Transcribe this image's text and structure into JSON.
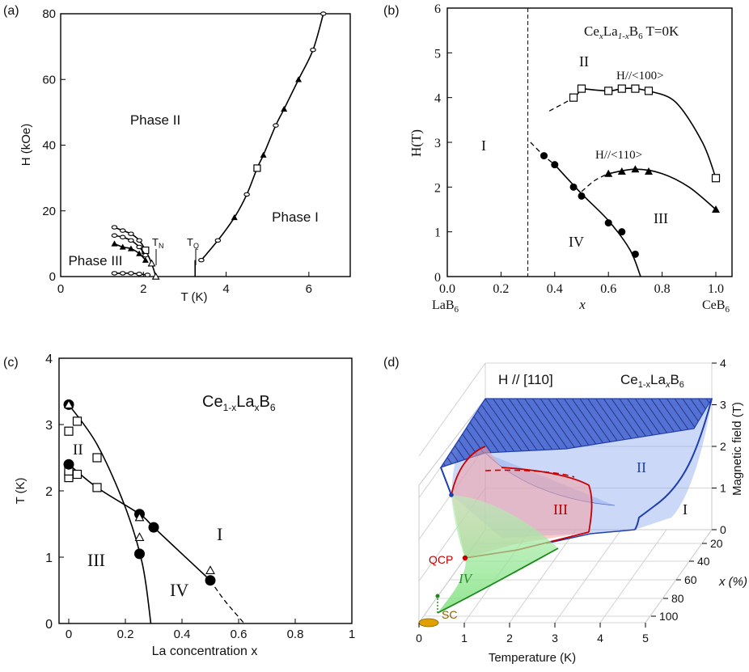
{
  "chart_data": [
    {
      "panel": "(a)",
      "type": "scatter",
      "xlabel": "T (K)",
      "ylabel": "H (kOe)",
      "xlim": [
        0,
        7
      ],
      "ylim": [
        0,
        80
      ],
      "x_ticks": [
        "0",
        "2",
        "4",
        "6"
      ],
      "y_ticks": [
        "0",
        "20",
        "40",
        "60",
        "80"
      ],
      "annotations": {
        "phase_ii": "Phase II",
        "phase_i": "Phase I",
        "phase_iii": "Phase III",
        "tn": "T",
        "tn_sub": "N",
        "tq": "T",
        "tq_sub": "Q"
      },
      "series": [
        {
          "values": [
            [
              3.4,
              5
            ],
            [
              3.8,
              11
            ],
            [
              4.2,
              18
            ],
            [
              4.5,
              25
            ],
            [
              4.75,
              33
            ],
            [
              4.9,
              37
            ],
            [
              5.2,
              46
            ],
            [
              5.4,
              51
            ],
            [
              5.75,
              60
            ],
            [
              6.1,
              69
            ],
            [
              6.35,
              80
            ]
          ]
        },
        {
          "values": [
            [
              1.3,
              15
            ],
            [
              1.5,
              14
            ],
            [
              1.7,
              13
            ],
            [
              1.9,
              11
            ],
            [
              2.05,
              8
            ],
            [
              2.2,
              4
            ],
            [
              2.3,
              0
            ]
          ]
        },
        {
          "values": [
            [
              1.3,
              12.5
            ],
            [
              1.5,
              12
            ],
            [
              1.7,
              11
            ],
            [
              1.9,
              9
            ],
            [
              2.05,
              6.5
            ]
          ]
        },
        {
          "values": [
            [
              1.3,
              10
            ],
            [
              1.5,
              9
            ],
            [
              1.7,
              8.5
            ],
            [
              1.9,
              7
            ],
            [
              2.05,
              5
            ]
          ]
        },
        {
          "values": [
            [
              1.3,
              1
            ],
            [
              1.5,
              1
            ],
            [
              1.7,
              1
            ],
            [
              1.9,
              0.8
            ],
            [
              2.1,
              0.5
            ]
          ]
        }
      ]
    },
    {
      "panel": "(b)",
      "type": "scatter",
      "title_parts": {
        "ce": "Ce",
        "x": "x",
        "la": "La",
        "sub": "1-x",
        "b": "B",
        "six": "6",
        "temp": " T=0K"
      },
      "xlabel": "x",
      "ylabel": "H(T)",
      "xlim": [
        0,
        1
      ],
      "ylim": [
        0,
        6
      ],
      "x_ticks": [
        "0.0",
        "0.2",
        "0.4",
        "0.6",
        "0.8",
        "1.0"
      ],
      "y_ticks": [
        "0",
        "1",
        "2",
        "3",
        "4",
        "5",
        "6"
      ],
      "end_labels": {
        "left": "LaB",
        "left_sub": "6",
        "right": "CeB",
        "right_sub": "6"
      },
      "annotations": {
        "ii": "II",
        "i": "I",
        "iii": "III",
        "iv": "IV",
        "h100": "H//<100>",
        "h110": "H//<110>"
      },
      "series": [
        {
          "name": "H//<100>",
          "x": [
            0.47,
            0.5,
            0.6,
            0.65,
            0.7,
            0.75,
            1.0
          ],
          "values": [
            4.0,
            4.2,
            4.15,
            4.2,
            4.2,
            4.15,
            2.2
          ]
        },
        {
          "name": "H//<110>",
          "x": [
            0.6,
            0.65,
            0.7,
            0.75,
            1.0
          ],
          "values": [
            2.3,
            2.35,
            2.4,
            2.35,
            1.5
          ]
        },
        {
          "x": [
            0.36,
            0.4,
            0.47,
            0.5,
            0.6,
            0.65,
            0.7
          ],
          "values": [
            2.7,
            2.5,
            2.0,
            1.8,
            1.2,
            1.0,
            0.5
          ]
        }
      ],
      "vline_x": 0.3
    },
    {
      "panel": "(c)",
      "type": "scatter",
      "title_parts": {
        "ce": "Ce",
        "sub1": "1-x",
        "la": "La",
        "subx": "x",
        "b": "B",
        "six": "6"
      },
      "xlabel": "La concentration x",
      "ylabel": "T (K)",
      "xlim": [
        0,
        1
      ],
      "ylim": [
        0,
        4
      ],
      "x_ticks": [
        "0",
        "0.2",
        "0.4",
        "0.6",
        "0.8",
        "1"
      ],
      "y_ticks": [
        "0",
        "1",
        "2",
        "3",
        "4"
      ],
      "annotations": {
        "ii": "II",
        "i": "I",
        "iii": "III",
        "iv": "IV"
      },
      "series": [
        {
          "x": [
            0.0,
            0.0,
            0.03,
            0.1,
            0.0,
            0.0,
            0.03,
            0.1
          ],
          "values": [
            2.9,
            2.25,
            3.05,
            2.5,
            2.2,
            2.3,
            2.25,
            2.05
          ]
        },
        {
          "x": [
            0.0,
            0.0,
            0.25,
            0.3,
            0.25,
            0.5
          ],
          "values": [
            3.3,
            2.4,
            1.65,
            1.45,
            1.05,
            0.65
          ]
        },
        {
          "x": [
            0.0,
            0.25,
            0.25,
            0.5
          ],
          "values": [
            3.3,
            1.6,
            1.3,
            0.8
          ]
        }
      ]
    },
    {
      "panel": "(d)",
      "type": "area",
      "title": "H // [110]",
      "title_parts": {
        "ce": "Ce",
        "sub1": "1-x",
        "la": "La",
        "subx": "x",
        "b": "B",
        "six": "6"
      },
      "xlabel": "Temperature (K)",
      "ylabel": "x (%)",
      "zlabel": "Magnetic field (T)",
      "x_ticks": [
        "0",
        "1",
        "2",
        "3",
        "4",
        "5"
      ],
      "y_ticks": [
        "20",
        "40",
        "60",
        "80",
        "100"
      ],
      "z_ticks": [
        "0",
        "1",
        "2",
        "3",
        "4"
      ],
      "annotations": {
        "ii": "II",
        "i": "I",
        "iii": "III",
        "iv": "IV",
        "qcp": "QCP",
        "sc": "SC"
      },
      "colors": {
        "ii": "#5b7fe0",
        "iii": "#f08080",
        "iv": "#7fe07f",
        "sc": "#e0a000",
        "qcp": "#c00000",
        "edge_blue": "#1f3fb0",
        "edge_red": "#c80000",
        "edge_green": "#1a8a1a"
      }
    }
  ],
  "labels": {
    "a": "(a)",
    "b": "(b)",
    "c": "(c)",
    "d": "(d)"
  }
}
